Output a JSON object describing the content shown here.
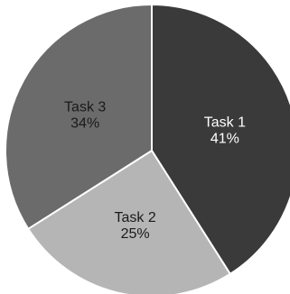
{
  "chart_data": {
    "type": "pie",
    "categories": [
      "Task 1",
      "Task 2",
      "Task 3"
    ],
    "values": [
      41,
      25,
      34
    ],
    "value_labels": [
      "41%",
      "25%",
      "34%"
    ],
    "start_angle_deg": 0,
    "direction": "clockwise",
    "legend": "none",
    "colors": {
      "Task 1": "#3a3a3a",
      "Task 2": "#b5b5b5",
      "Task 3": "#6b6b6b"
    },
    "label_colors": {
      "Task 1": "#ffffff",
      "Task 2": "#1a1a1a",
      "Task 3": "#1a1a1a"
    },
    "slice_border_color": "#ffffff"
  }
}
